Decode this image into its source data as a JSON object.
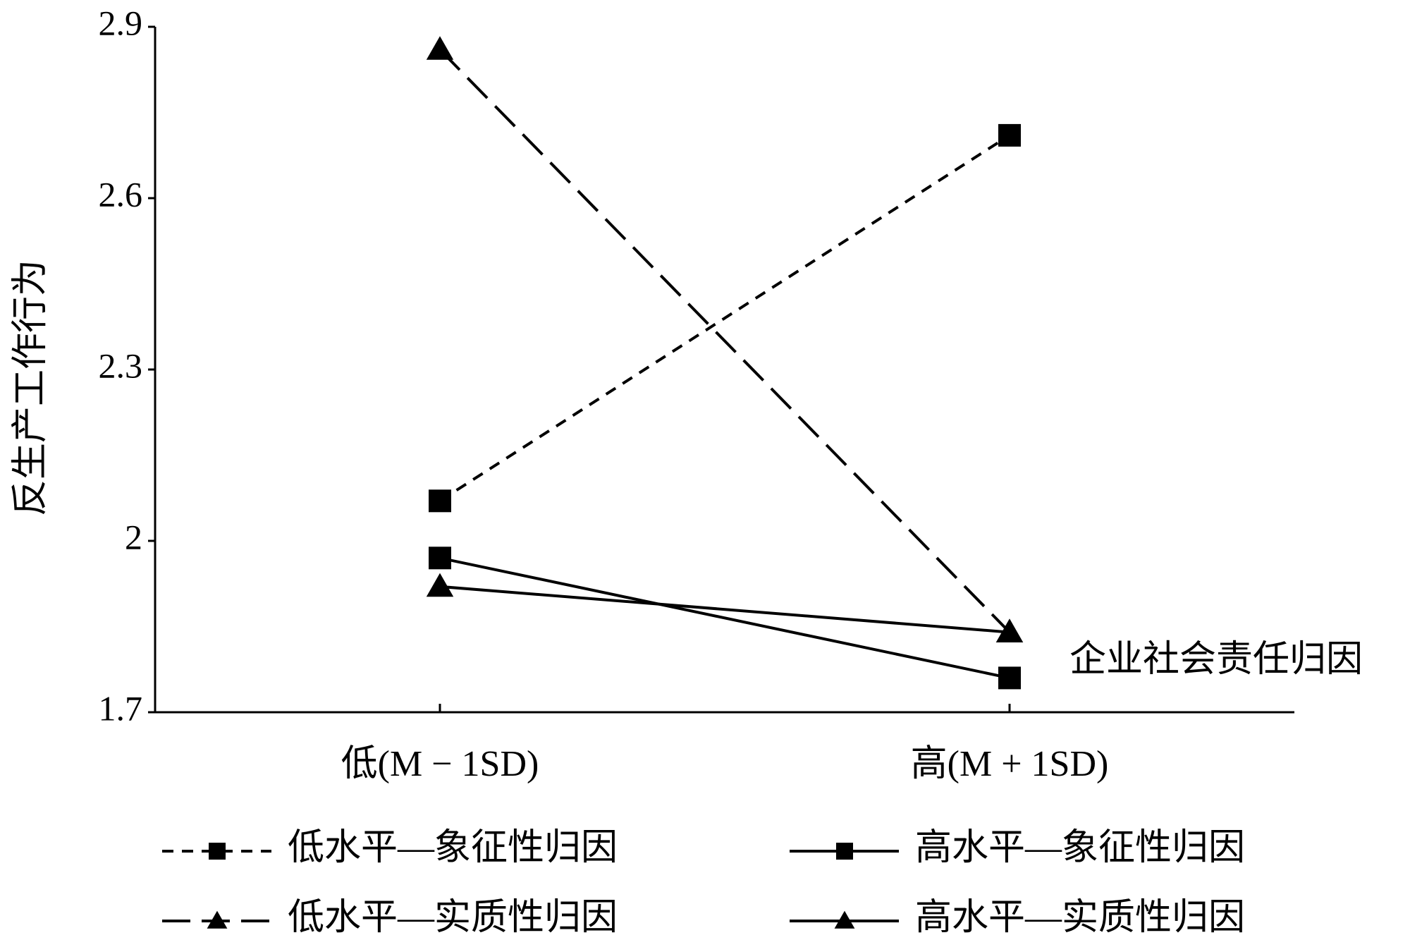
{
  "chart_data": {
    "type": "line",
    "y_label": "反生产工作行为",
    "annotation": "企业社会责任归因",
    "categories": [
      "低(M − 1SD)",
      "高(M + 1SD)"
    ],
    "ylim": [
      1.7,
      2.9
    ],
    "yticks": [
      1.7,
      2.0,
      2.3,
      2.6,
      2.9
    ],
    "grid": false,
    "series": [
      {
        "name": "低水平—象征性归因",
        "color": "#000000",
        "dash": "short",
        "marker": "square",
        "values": [
          2.07,
          2.71
        ]
      },
      {
        "name": "高水平—象征性归因",
        "color": "#000000",
        "dash": "solid",
        "marker": "square",
        "values": [
          1.97,
          1.76
        ]
      },
      {
        "name": "低水平—实质性归因",
        "color": "#000000",
        "dash": "long",
        "marker": "triangle",
        "values": [
          2.86,
          1.84
        ]
      },
      {
        "name": "高水平—实质性归因",
        "color": "#000000",
        "dash": "solid",
        "marker": "triangle",
        "values": [
          1.92,
          1.84
        ]
      }
    ]
  }
}
